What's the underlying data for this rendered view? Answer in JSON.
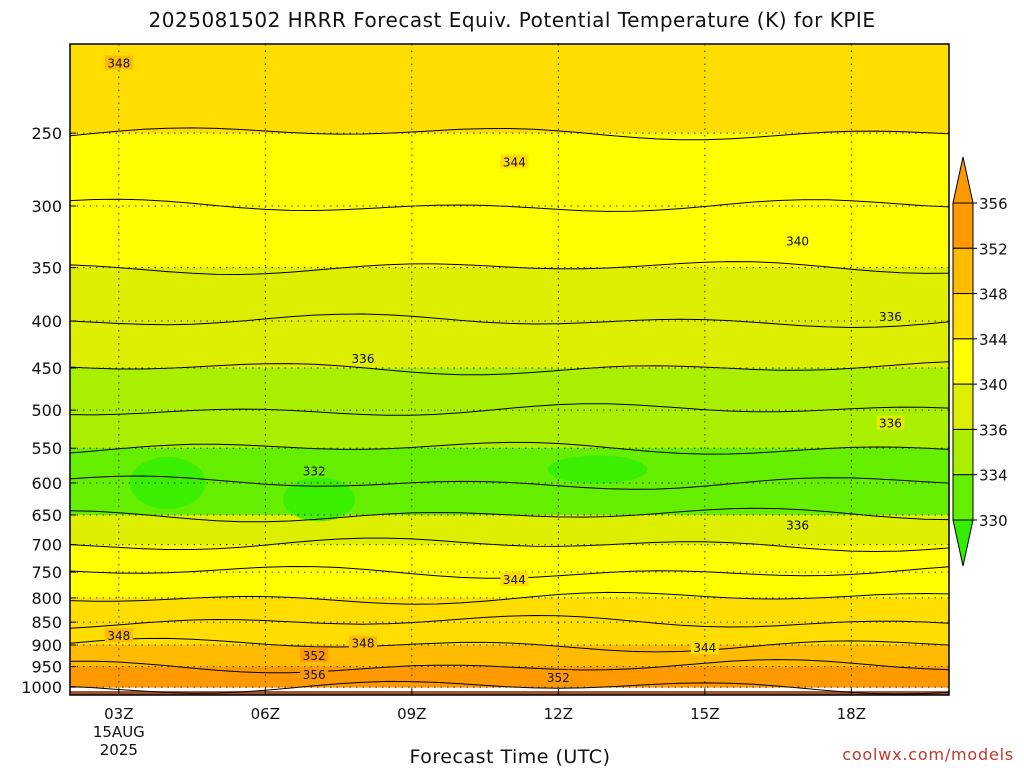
{
  "title": "2025081502 HRRR Forecast Equiv. Potential Temperature (K) for KPIE",
  "xlabel": "Forecast Time (UTC)",
  "credit": "coolwx.com/models",
  "colors": {
    "frame": "#000000",
    "grid": "#333333",
    "ground": "#a0522d",
    "levels": [
      "#33ee00",
      "#66ee00",
      "#aaee00",
      "#ddee00",
      "#ffff00",
      "#ffdd00",
      "#ffbb00",
      "#ff9900"
    ]
  },
  "chart_data": {
    "type": "heatmap",
    "title": "2025081502 HRRR Forecast Equiv. Potential Temperature (K) for KPIE",
    "xlabel": "Forecast Time (UTC)",
    "ylabel": "",
    "x_ticks": [
      {
        "label": "03Z",
        "sub": [
          "15AUG",
          "2025"
        ],
        "hour": 3
      },
      {
        "label": "06Z",
        "hour": 6
      },
      {
        "label": "09Z",
        "hour": 9
      },
      {
        "label": "12Z",
        "hour": 12
      },
      {
        "label": "15Z",
        "hour": 15
      },
      {
        "label": "18Z",
        "hour": 18
      }
    ],
    "x_range_hours": [
      2,
      20
    ],
    "y_ticks": [
      250,
      300,
      350,
      400,
      450,
      500,
      550,
      600,
      650,
      700,
      750,
      800,
      850,
      900,
      950,
      1000
    ],
    "y_range_hpa": [
      1020,
      200
    ],
    "y_scale": "log-pressure",
    "grid": true,
    "colorbar": {
      "ticks": [
        330,
        334,
        336,
        340,
        344,
        348,
        352,
        356
      ],
      "orientation": "vertical",
      "position": "right"
    },
    "contour_labels": [
      {
        "value": "348",
        "hour": 3.0,
        "p": 210
      },
      {
        "value": "344",
        "hour": 11.1,
        "p": 269
      },
      {
        "value": "340",
        "hour": 16.9,
        "p": 328
      },
      {
        "value": "336",
        "hour": 18.8,
        "p": 396
      },
      {
        "value": "336",
        "hour": 8.0,
        "p": 440
      },
      {
        "value": "336",
        "hour": 18.8,
        "p": 517
      },
      {
        "value": "332",
        "hour": 7.0,
        "p": 583
      },
      {
        "value": "336",
        "hour": 16.9,
        "p": 667
      },
      {
        "value": "344",
        "hour": 11.1,
        "p": 765
      },
      {
        "value": "348",
        "hour": 3.0,
        "p": 880
      },
      {
        "value": "348",
        "hour": 8.0,
        "p": 897
      },
      {
        "value": "344",
        "hour": 15.0,
        "p": 907
      },
      {
        "value": "352",
        "hour": 7.0,
        "p": 925
      },
      {
        "value": "356",
        "hour": 7.0,
        "p": 970
      },
      {
        "value": "352",
        "hour": 12.0,
        "p": 977
      }
    ],
    "theta_e_by_level": [
      {
        "p": 200,
        "K": 348
      },
      {
        "p": 250,
        "K": 345
      },
      {
        "p": 300,
        "K": 342
      },
      {
        "p": 350,
        "K": 340
      },
      {
        "p": 400,
        "K": 338
      },
      {
        "p": 450,
        "K": 336
      },
      {
        "p": 500,
        "K": 335
      },
      {
        "p": 550,
        "K": 334
      },
      {
        "p": 600,
        "K": 332
      },
      {
        "p": 650,
        "K": 334
      },
      {
        "p": 700,
        "K": 338
      },
      {
        "p": 750,
        "K": 342
      },
      {
        "p": 800,
        "K": 344
      },
      {
        "p": 850,
        "K": 346
      },
      {
        "p": 900,
        "K": 349
      },
      {
        "p": 950,
        "K": 354
      },
      {
        "p": 1000,
        "K": 356
      }
    ]
  }
}
